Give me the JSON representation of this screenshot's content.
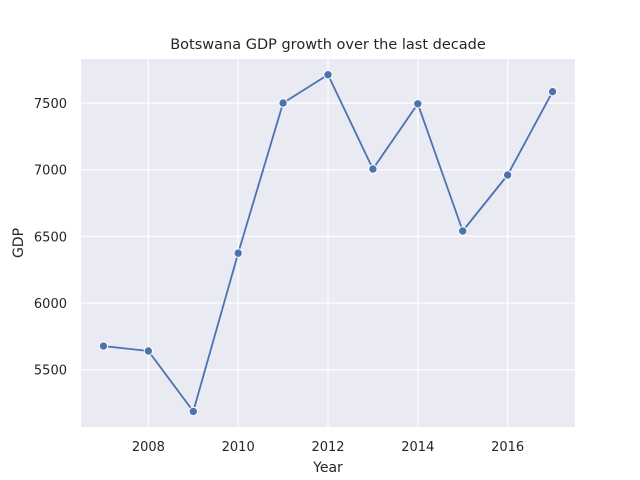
{
  "chart_data": {
    "type": "line",
    "title": "Botswana GDP growth over the last decade",
    "xlabel": "Year",
    "ylabel": "GDP",
    "x": [
      2007,
      2008,
      2009,
      2010,
      2011,
      2012,
      2013,
      2014,
      2015,
      2016,
      2017
    ],
    "series": [
      {
        "values": [
          5677,
          5640,
          5187,
          6374,
          7500,
          7712,
          7005,
          7494,
          6540,
          6960,
          7585
        ]
      }
    ],
    "xlim": [
      2006.5,
      2017.5
    ],
    "ylim": [
      5070,
      7830
    ],
    "xticks": [
      2008,
      2010,
      2012,
      2014,
      2016
    ],
    "yticks": [
      5500,
      6000,
      6500,
      7000,
      7500
    ],
    "grid": true,
    "line_color": "#4c72b0",
    "background_color": "#eaeaf2"
  }
}
